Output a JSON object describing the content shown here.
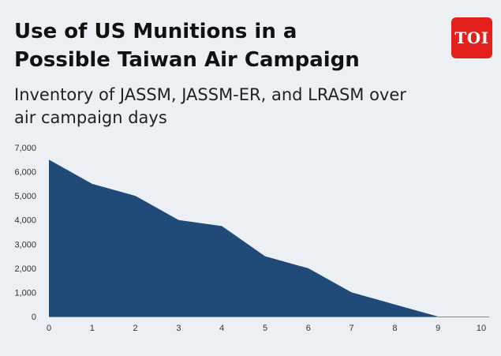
{
  "header": {
    "title_line1": "Use of US Munitions in a",
    "title_line2": "Possible Taiwan Air Campaign",
    "subtitle_line1": "Inventory of JASSM, JASSM-ER, and LRASM over",
    "subtitle_line2": "air campaign days"
  },
  "logo": {
    "text": "TOI",
    "color": "#e3201b"
  },
  "colors": {
    "area": "#204b78",
    "background": "#eceff3",
    "axis": "#8a8a8a"
  },
  "chart_data": {
    "type": "area",
    "title": "Use of US Munitions in a Possible Taiwan Air Campaign",
    "subtitle": "Inventory of JASSM, JASSM-ER, and LRASM over air campaign days",
    "xlabel": "",
    "ylabel": "",
    "x": [
      0,
      1,
      2,
      3,
      4,
      5,
      6,
      7,
      8,
      9
    ],
    "values": [
      6500,
      5500,
      5000,
      4000,
      3750,
      2500,
      2000,
      1000,
      500,
      0
    ],
    "xlim": [
      0,
      10
    ],
    "ylim": [
      0,
      7000
    ],
    "x_ticks": [
      "0",
      "1",
      "2",
      "3",
      "4",
      "5",
      "6",
      "7",
      "8",
      "9",
      "10"
    ],
    "y_ticks": [
      "0",
      "1,000",
      "2,000",
      "3,000",
      "4,000",
      "5,000",
      "6,000",
      "7,000"
    ],
    "grid": false,
    "legend": "none"
  }
}
